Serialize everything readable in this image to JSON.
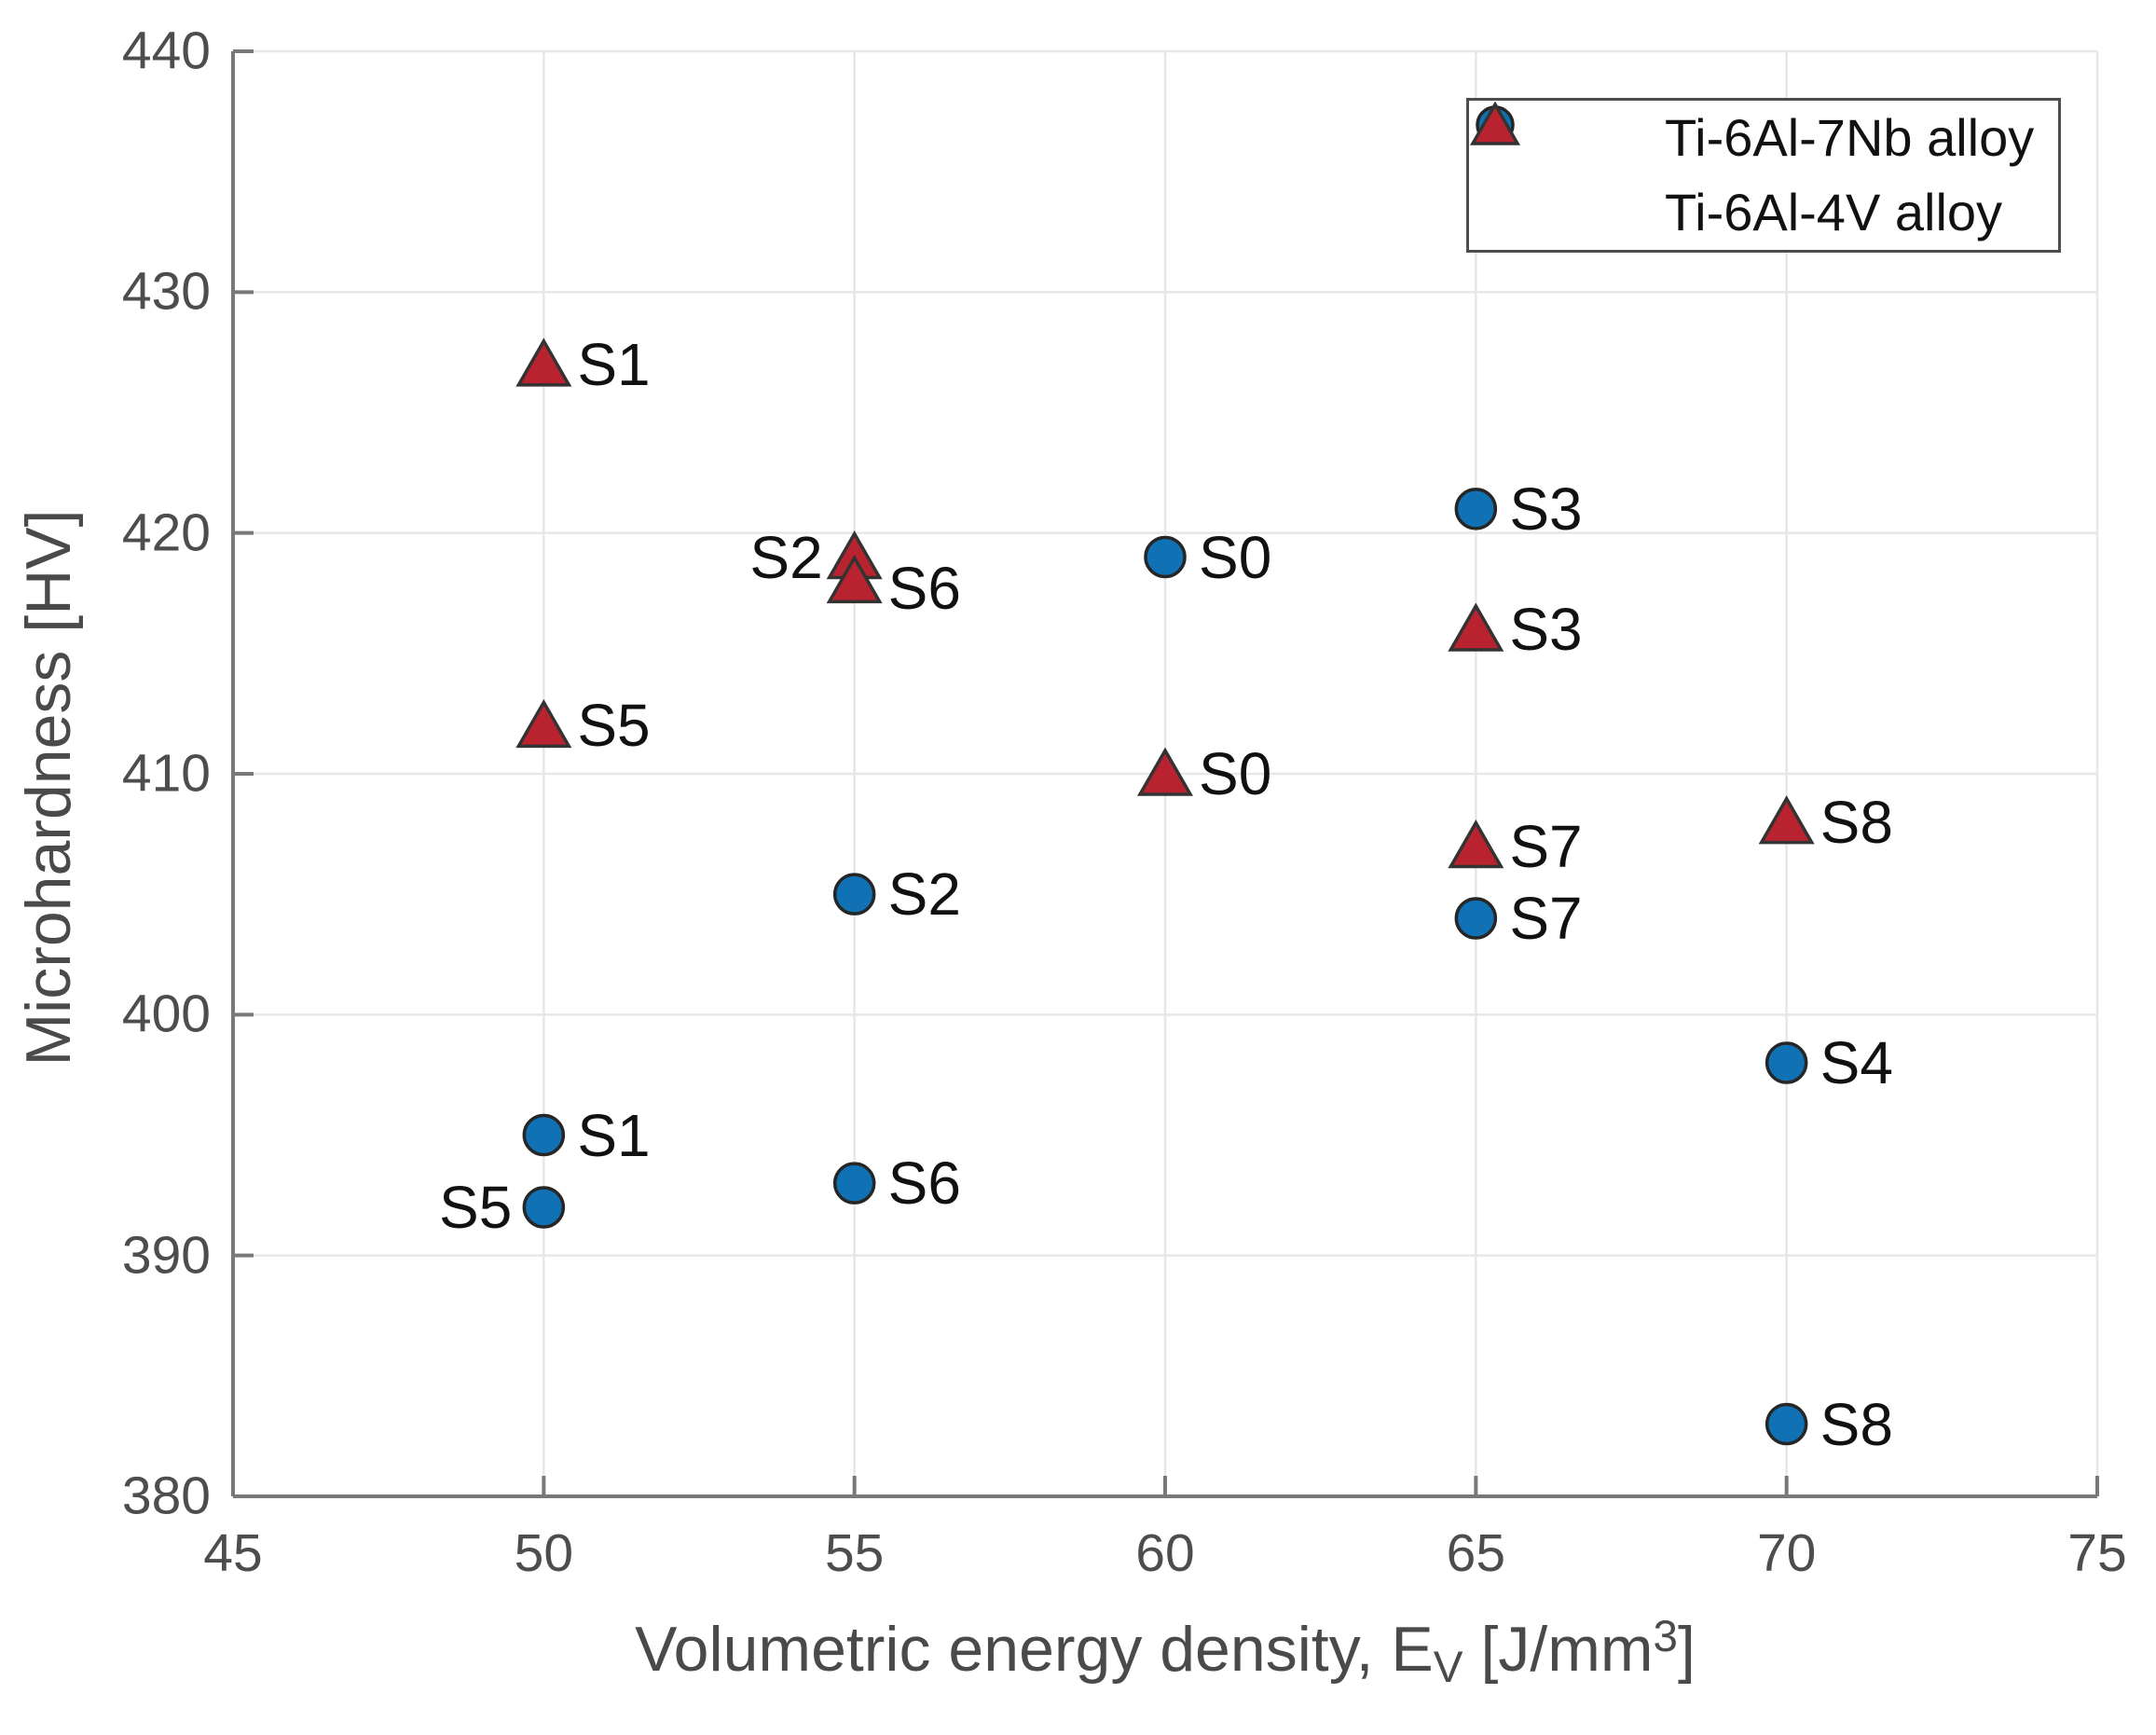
{
  "figure": {
    "background": "#ffffff"
  },
  "chart_data": {
    "type": "scatter",
    "title": "",
    "ylabel": "Microhardness [HV]",
    "xlabel_parts": {
      "prefix": "Volumetric energy density, E",
      "sub": "V",
      "mid": " [J/mm",
      "sup": "3",
      "suffix": "]"
    },
    "xlim": [
      45,
      75
    ],
    "ylim": [
      380,
      440
    ],
    "xticks": [
      45,
      50,
      55,
      60,
      65,
      70,
      75
    ],
    "yticks": [
      440,
      430,
      420,
      410,
      400,
      390,
      380
    ],
    "grid": true,
    "legend_position": "top-right",
    "series": [
      {
        "name": "Ti-6Al-7Nb alloy",
        "marker": "circle",
        "color": "#1072b5",
        "edge_color": "#262626",
        "points": [
          {
            "label": "S1",
            "x": 50,
            "y": 395,
            "label_side": "right"
          },
          {
            "label": "S5",
            "x": 50,
            "y": 392,
            "label_side": "left"
          },
          {
            "label": "S2",
            "x": 55,
            "y": 405,
            "label_side": "right"
          },
          {
            "label": "S6",
            "x": 55,
            "y": 393,
            "label_side": "right"
          },
          {
            "label": "S0",
            "x": 60,
            "y": 419,
            "label_side": "right"
          },
          {
            "label": "S3",
            "x": 65,
            "y": 421,
            "label_side": "right"
          },
          {
            "label": "S7",
            "x": 65,
            "y": 404,
            "label_side": "right"
          },
          {
            "label": "S4",
            "x": 70,
            "y": 398,
            "label_side": "right"
          },
          {
            "label": "S8",
            "x": 70,
            "y": 383,
            "label_side": "right"
          }
        ]
      },
      {
        "name": "Ti-6Al-4V alloy",
        "marker": "triangle",
        "color": "#b92330",
        "edge_color": "#333333",
        "points": [
          {
            "label": "S1",
            "x": 50,
            "y": 427,
            "label_side": "right"
          },
          {
            "label": "S5",
            "x": 50,
            "y": 412,
            "label_side": "right"
          },
          {
            "label": "S2",
            "x": 55,
            "y": 419,
            "label_side": "left"
          },
          {
            "label": "S6",
            "x": 55,
            "y": 418,
            "label_side": "right",
            "label_dy": 8
          },
          {
            "label": "S0",
            "x": 60,
            "y": 410,
            "label_side": "right"
          },
          {
            "label": "S3",
            "x": 65,
            "y": 416,
            "label_side": "right"
          },
          {
            "label": "S7",
            "x": 65,
            "y": 407,
            "label_side": "right"
          },
          {
            "label": "S8",
            "x": 70,
            "y": 408,
            "label_side": "right"
          }
        ]
      }
    ],
    "colors": {
      "grid": "#e7e7e7",
      "axis": "#787878",
      "tick_text": "#4d4d4d",
      "axis_title_text": "#4a4a4a",
      "point_label_text": "#111111",
      "legend_border": "#4d4d4d",
      "legend_bg": "#ffffff"
    }
  }
}
